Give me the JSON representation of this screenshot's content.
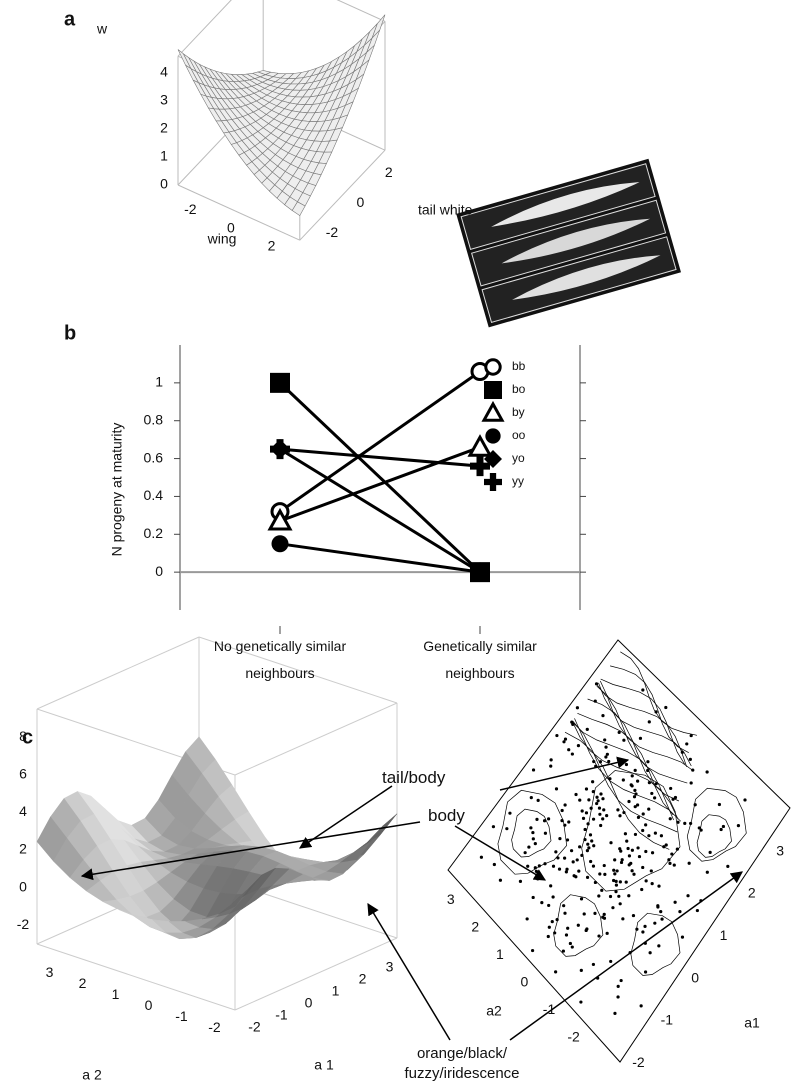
{
  "panel_labels": [
    "a",
    "b",
    "c"
  ],
  "chart_data": [
    {
      "type": "surface3d",
      "z_label": "w",
      "x_label": "wing",
      "y_label": "tail white",
      "zticks": [
        0,
        1,
        2,
        3,
        4
      ],
      "xticks": [
        -2,
        0,
        2
      ],
      "yticks": [
        -2,
        0,
        2
      ]
    },
    {
      "type": "line",
      "ylabel": "N progeny at maturity",
      "categories": [
        "No genetically similar neighbours",
        "Genetically similar neighbours"
      ],
      "series": [
        {
          "name": "bb",
          "color": "#000000",
          "marker": "circle-open",
          "values": [
            0.32,
            1.06
          ]
        },
        {
          "name": "bo",
          "color": "#000000",
          "marker": "square",
          "values": [
            1.0,
            0.0
          ]
        },
        {
          "name": "by",
          "color": "#000000",
          "marker": "triangle-open",
          "values": [
            0.27,
            0.66
          ]
        },
        {
          "name": "oo",
          "color": "#000000",
          "marker": "circle",
          "values": [
            0.15,
            0.0
          ]
        },
        {
          "name": "yo",
          "color": "#000000",
          "marker": "diamond",
          "values": [
            0.65,
            0.0
          ]
        },
        {
          "name": "yy",
          "color": "#000000",
          "marker": "plus",
          "values": [
            0.65,
            0.56
          ]
        }
      ],
      "ylim": [
        -0.2,
        1.2
      ],
      "yticks": [
        0,
        0.2,
        0.4,
        0.6,
        0.8,
        1
      ],
      "reference_line": 0,
      "legend": "right"
    },
    {
      "type": "surface3d",
      "x_label": "a 2",
      "y_label": "a 1",
      "zticks": [
        -2,
        0,
        2,
        4,
        6,
        8
      ],
      "xticks": [
        3,
        2,
        1,
        0,
        -1,
        -2
      ],
      "yticks": [
        -2,
        -1,
        0,
        1,
        2,
        3
      ]
    },
    {
      "type": "contour",
      "x_label": "a2",
      "y_label": "a1",
      "xticks": [
        3,
        2,
        1,
        0,
        -1,
        -2
      ],
      "yticks": [
        -2,
        -1,
        0,
        1,
        2,
        3
      ]
    }
  ],
  "annotations": [
    "tail/body",
    "body",
    "orange/black/ fuzzy/iridescence"
  ]
}
